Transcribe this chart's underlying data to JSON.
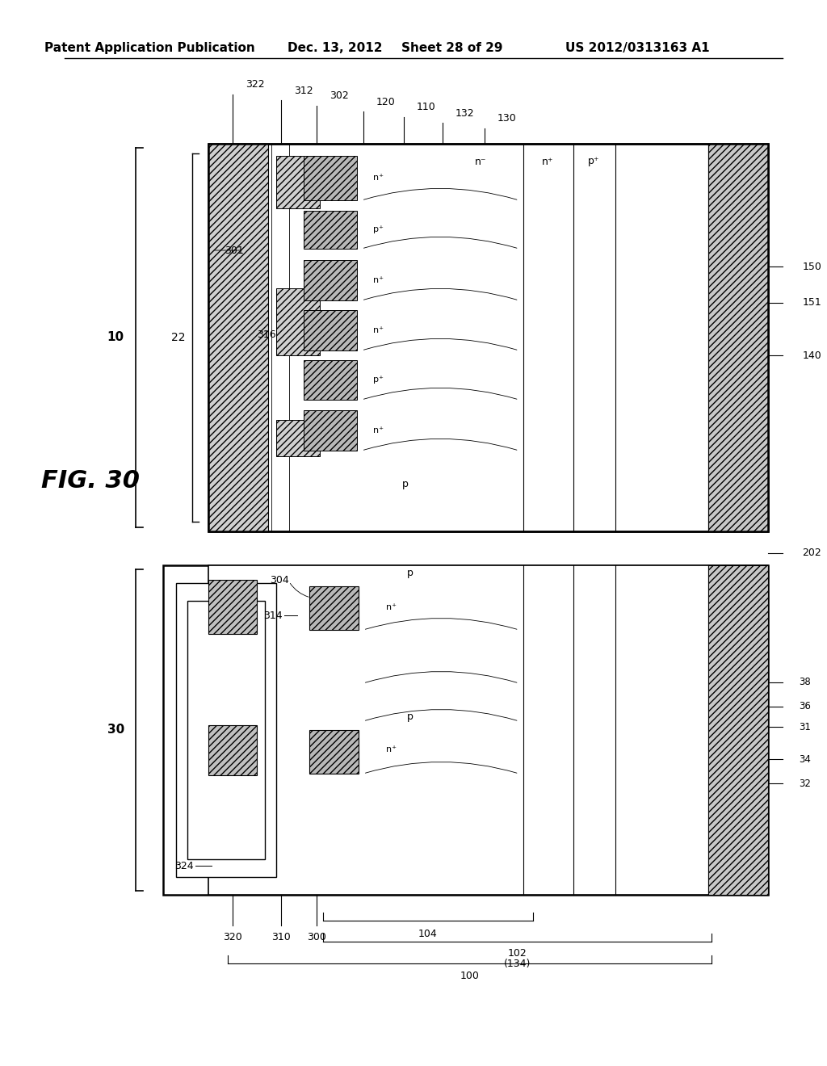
{
  "bg_color": "#ffffff",
  "header_text": "Patent Application Publication",
  "header_date": "Dec. 13, 2012",
  "header_sheet": "Sheet 28 of 29",
  "header_patent": "US 2012/0313163 A1",
  "fig_label": "FIG. 30",
  "title_fontsize": 11,
  "label_fontsize": 9.5,
  "line_color": "#000000"
}
